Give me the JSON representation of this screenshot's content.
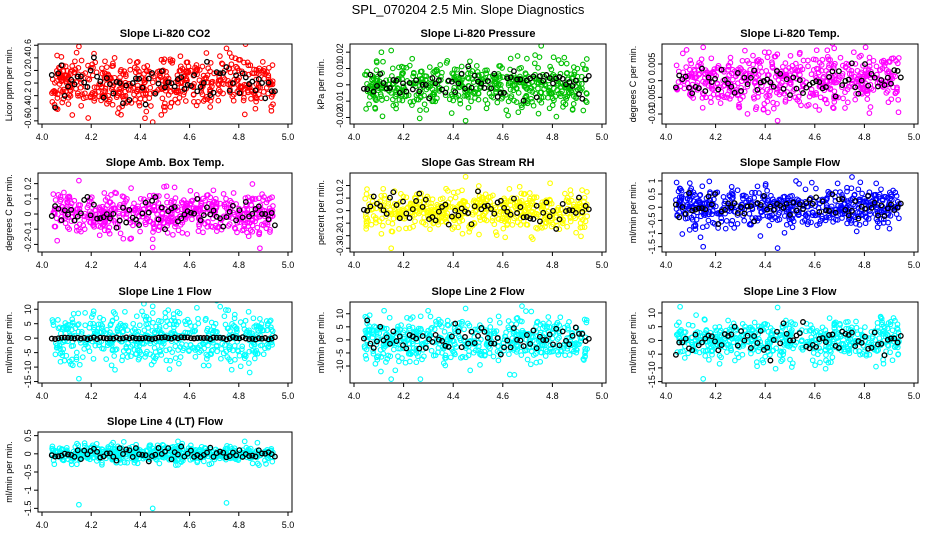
{
  "main_title": "SPL_070204  2.5 Min. Slope Diagnostics",
  "chart_data": [
    {
      "type": "scatter",
      "title": "Slope Li-820 CO2",
      "ylabel": "Licor ppm per min.",
      "xlim": [
        4.0,
        5.0
      ],
      "ylim": [
        -0.65,
        0.62
      ],
      "yticks": [
        -0.6,
        -0.4,
        -0.2,
        0.0,
        0.2,
        0.4,
        0.6
      ],
      "xticks": [
        4.0,
        4.2,
        4.4,
        4.6,
        4.8,
        5.0
      ],
      "color": "#ff0000",
      "spread": 0.22,
      "outliers": [
        0.58,
        -0.62,
        0.55
      ],
      "seed": 11
    },
    {
      "type": "scatter",
      "title": "Slope Li-820 Pressure",
      "ylabel": "kPa per min.",
      "xlim": [
        4.0,
        5.0
      ],
      "ylim": [
        -0.024,
        0.025
      ],
      "yticks": [
        -0.02,
        -0.01,
        0.0,
        0.01,
        0.02
      ],
      "xticks": [
        4.0,
        4.2,
        4.4,
        4.6,
        4.8,
        5.0
      ],
      "color": "#00c000",
      "spread": 0.007,
      "outliers": [
        0.021,
        -0.022
      ],
      "seed": 23
    },
    {
      "type": "scatter",
      "title": "Slope Li-820 Temp.",
      "ylabel": "degrees C per min.",
      "xlim": [
        4.0,
        5.0
      ],
      "ylim": [
        -0.013,
        0.011
      ],
      "yticks": [
        -0.01,
        -0.005,
        0.0,
        0.005
      ],
      "xticks": [
        4.0,
        4.2,
        4.4,
        4.6,
        4.8,
        5.0
      ],
      "color": "#ff00ff",
      "spread": 0.004,
      "outliers": [
        0.01,
        -0.012
      ],
      "seed": 37
    },
    {
      "type": "scatter",
      "title": "Slope Amb. Box Temp.",
      "ylabel": "degrees C per min.",
      "xlim": [
        4.0,
        5.0
      ],
      "ylim": [
        -0.25,
        0.27
      ],
      "yticks": [
        -0.2,
        -0.1,
        0.0,
        0.1,
        0.2
      ],
      "xticks": [
        4.0,
        4.2,
        4.4,
        4.6,
        4.8,
        5.0
      ],
      "color": "#ff00ff",
      "spread": 0.07,
      "outliers": [
        0.22,
        -0.22
      ],
      "seed": 41
    },
    {
      "type": "scatter",
      "title": "Slope Gas Stream RH",
      "ylabel": "percent per min.",
      "xlim": [
        4.0,
        5.0
      ],
      "ylim": [
        -0.33,
        0.3
      ],
      "yticks": [
        -0.3,
        -0.2,
        -0.1,
        0.0,
        0.1,
        0.2
      ],
      "xticks": [
        4.0,
        4.2,
        4.4,
        4.6,
        4.8,
        5.0
      ],
      "color": "#ffff00",
      "spread": 0.08,
      "outliers": [
        -0.3,
        0.27
      ],
      "seed": 53
    },
    {
      "type": "scatter",
      "title": "Slope Sample Flow",
      "ylabel": "ml/min per min.",
      "xlim": [
        4.0,
        5.0
      ],
      "ylim": [
        -1.7,
        1.3
      ],
      "yticks": [
        -1.5,
        -1.0,
        -0.5,
        0.0,
        0.5,
        1.0
      ],
      "xticks": [
        4.0,
        4.2,
        4.4,
        4.6,
        4.8,
        5.0
      ],
      "color": "#0000ff",
      "spread": 0.35,
      "outliers": [
        -1.5,
        -1.55,
        1.15
      ],
      "seed": 67
    },
    {
      "type": "scatter",
      "title": "Slope Line 1 Flow",
      "ylabel": "ml/min per min.",
      "xlim": [
        4.0,
        5.0
      ],
      "ylim": [
        -15.5,
        12.5
      ],
      "yticks": [
        -15,
        -10,
        -5,
        0,
        5,
        10
      ],
      "xticks": [
        4.0,
        4.2,
        4.4,
        4.6,
        4.8,
        5.0
      ],
      "color": "#00ffff",
      "spread": 4.5,
      "outliers": [
        -14,
        11
      ],
      "seed": 79
    },
    {
      "type": "scatter",
      "title": "Slope Line 2 Flow",
      "ylabel": "ml/min per min.",
      "xlim": [
        4.0,
        5.0
      ],
      "ylim": [
        -16.5,
        14.5
      ],
      "yticks": [
        -10,
        -5,
        0,
        5,
        10
      ],
      "xticks": [
        4.0,
        4.2,
        4.4,
        4.6,
        4.8,
        5.0
      ],
      "color": "#00ffff",
      "spread": 4.5,
      "outliers": [
        -15,
        12
      ],
      "seed": 83
    },
    {
      "type": "scatter",
      "title": "Slope Line 3 Flow",
      "ylabel": "ml/min per min.",
      "xlim": [
        4.0,
        5.0
      ],
      "ylim": [
        -15.5,
        14
      ],
      "yticks": [
        -15,
        -10,
        -5,
        0,
        5,
        10
      ],
      "xticks": [
        4.0,
        4.2,
        4.4,
        4.6,
        4.8,
        5.0
      ],
      "color": "#00ffff",
      "spread": 4,
      "outliers": [
        -14,
        12
      ],
      "seed": 97
    },
    {
      "type": "scatter",
      "title": "Slope Line 4 (LT) Flow",
      "ylabel": "ml/min per min.",
      "xlim": [
        4.0,
        5.0
      ],
      "ylim": [
        -1.6,
        0.6
      ],
      "yticks": [
        -1.5,
        -1.0,
        -0.5,
        0.0,
        0.5
      ],
      "xticks": [
        4.0,
        4.2,
        4.4,
        4.6,
        4.8,
        5.0
      ],
      "color": "#00ffff",
      "spread": 0.12,
      "outliers": [
        -1.4,
        -1.5,
        -1.35
      ],
      "seed": 101
    }
  ]
}
